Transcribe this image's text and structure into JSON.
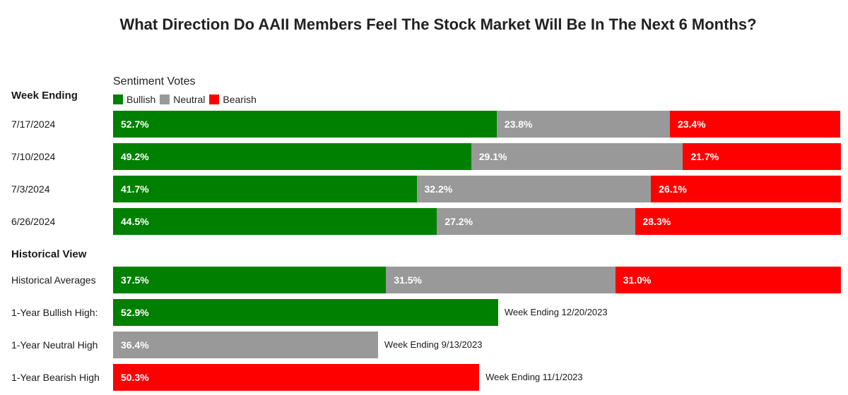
{
  "chart_data": {
    "type": "bar",
    "orientation": "horizontal",
    "stacked": true,
    "title": "What Direction Do AAII Members Feel The Stock Market Will Be In The Next 6 Months?",
    "legend_title": "Sentiment Votes",
    "legend": [
      {
        "name": "Bullish",
        "color": "#008000"
      },
      {
        "name": "Neutral",
        "color": "#999999"
      },
      {
        "name": "Bearish",
        "color": "#ff0000"
      }
    ],
    "weekly": {
      "heading": "Week Ending",
      "rows": [
        {
          "label": "7/17/2024",
          "values": [
            52.7,
            23.8,
            23.4
          ],
          "labels": [
            "52.7%",
            "23.8%",
            "23.4%"
          ]
        },
        {
          "label": "7/10/2024",
          "values": [
            49.2,
            29.1,
            21.7
          ],
          "labels": [
            "49.2%",
            "29.1%",
            "21.7%"
          ]
        },
        {
          "label": "7/3/2024",
          "values": [
            41.7,
            32.2,
            26.1
          ],
          "labels": [
            "41.7%",
            "32.2%",
            "26.1%"
          ]
        },
        {
          "label": "6/26/2024",
          "values": [
            44.5,
            27.2,
            28.3
          ],
          "labels": [
            "44.5%",
            "27.2%",
            "28.3%"
          ]
        }
      ]
    },
    "historical": {
      "heading": "Historical View",
      "averages": {
        "label": "Historical Averages",
        "values": [
          37.5,
          31.5,
          31.0
        ],
        "labels": [
          "37.5%",
          "31.5%",
          "31.0%"
        ]
      },
      "highs": [
        {
          "label": "1-Year Bullish High:",
          "series": "Bullish",
          "value": 52.9,
          "value_label": "52.9%",
          "note": "Week Ending 12/20/2023"
        },
        {
          "label": "1-Year Neutral High",
          "series": "Neutral",
          "value": 36.4,
          "value_label": "36.4%",
          "note": "Week Ending 9/13/2023"
        },
        {
          "label": "1-Year Bearish High",
          "series": "Bearish",
          "value": 50.3,
          "value_label": "50.3%",
          "note": "Week Ending 11/1/2023"
        }
      ]
    },
    "xlim": [
      0,
      100
    ]
  }
}
